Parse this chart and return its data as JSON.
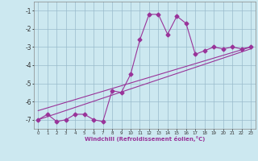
{
  "xlabel": "Windchill (Refroidissement éolien,°C)",
  "x_values": [
    0,
    1,
    2,
    3,
    4,
    5,
    6,
    7,
    8,
    9,
    10,
    11,
    12,
    13,
    14,
    15,
    16,
    17,
    18,
    19,
    20,
    21,
    22,
    23
  ],
  "y_values": [
    -7.0,
    -6.7,
    -7.1,
    -7.0,
    -6.7,
    -6.7,
    -7.0,
    -7.1,
    -5.4,
    -5.5,
    -4.5,
    -2.6,
    -1.2,
    -1.2,
    -2.3,
    -1.3,
    -1.7,
    -3.4,
    -3.2,
    -3.0,
    -3.1,
    -3.0,
    -3.1,
    -3.0
  ],
  "line1_x": [
    0,
    23
  ],
  "line1_y": [
    -7.0,
    -3.1
  ],
  "line2_x": [
    0,
    23
  ],
  "line2_y": [
    -6.5,
    -3.0
  ],
  "ylim": [
    -7.5,
    -0.5
  ],
  "xlim": [
    -0.5,
    23.5
  ],
  "yticks": [
    -7,
    -6,
    -5,
    -4,
    -3,
    -2,
    -1
  ],
  "xticks": [
    0,
    1,
    2,
    3,
    4,
    5,
    6,
    7,
    8,
    9,
    10,
    11,
    12,
    13,
    14,
    15,
    16,
    17,
    18,
    19,
    20,
    21,
    22,
    23
  ],
  "line_color": "#993399",
  "bg_color": "#cce8f0",
  "grid_color": "#99bbcc",
  "marker": "D",
  "marker_size": 2.5,
  "line_width": 0.8
}
